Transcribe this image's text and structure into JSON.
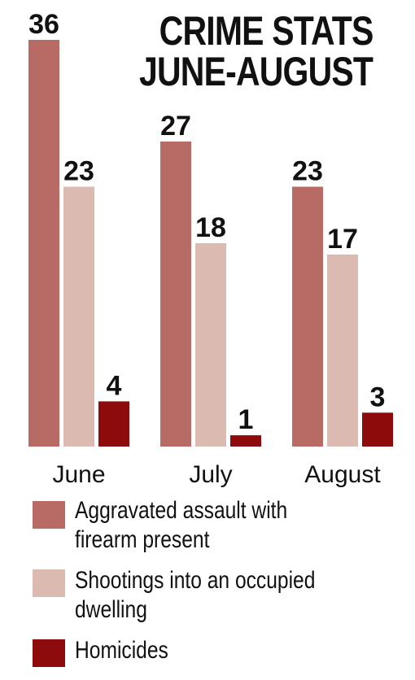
{
  "title_line1": "CRIME STATS",
  "title_line2": "JUNE-AUGUST",
  "colors": {
    "aggravated": "#b86b65",
    "shootings": "#dbbbb1",
    "homicides": "#8e0b0b"
  },
  "chart_data": {
    "type": "bar",
    "title": "CRIME STATS JUNE-AUGUST",
    "categories": [
      "June",
      "July",
      "August"
    ],
    "series": [
      {
        "name": "Aggravated assault with firearm present",
        "values": [
          36,
          27,
          23
        ]
      },
      {
        "name": "Shootings into an occupied dwelling",
        "values": [
          23,
          18,
          17
        ]
      },
      {
        "name": "Homicides",
        "values": [
          4,
          1,
          3
        ]
      }
    ],
    "ylim": [
      0,
      36
    ],
    "xlabel": "",
    "ylabel": "",
    "grid": false,
    "legend_position": "bottom"
  },
  "legend": [
    {
      "line1": "Aggravated assault with",
      "line2": "firearm present"
    },
    {
      "line1": "Shootings into an occupied",
      "line2": "dwelling"
    },
    {
      "line1": "Homicides",
      "line2": ""
    }
  ]
}
